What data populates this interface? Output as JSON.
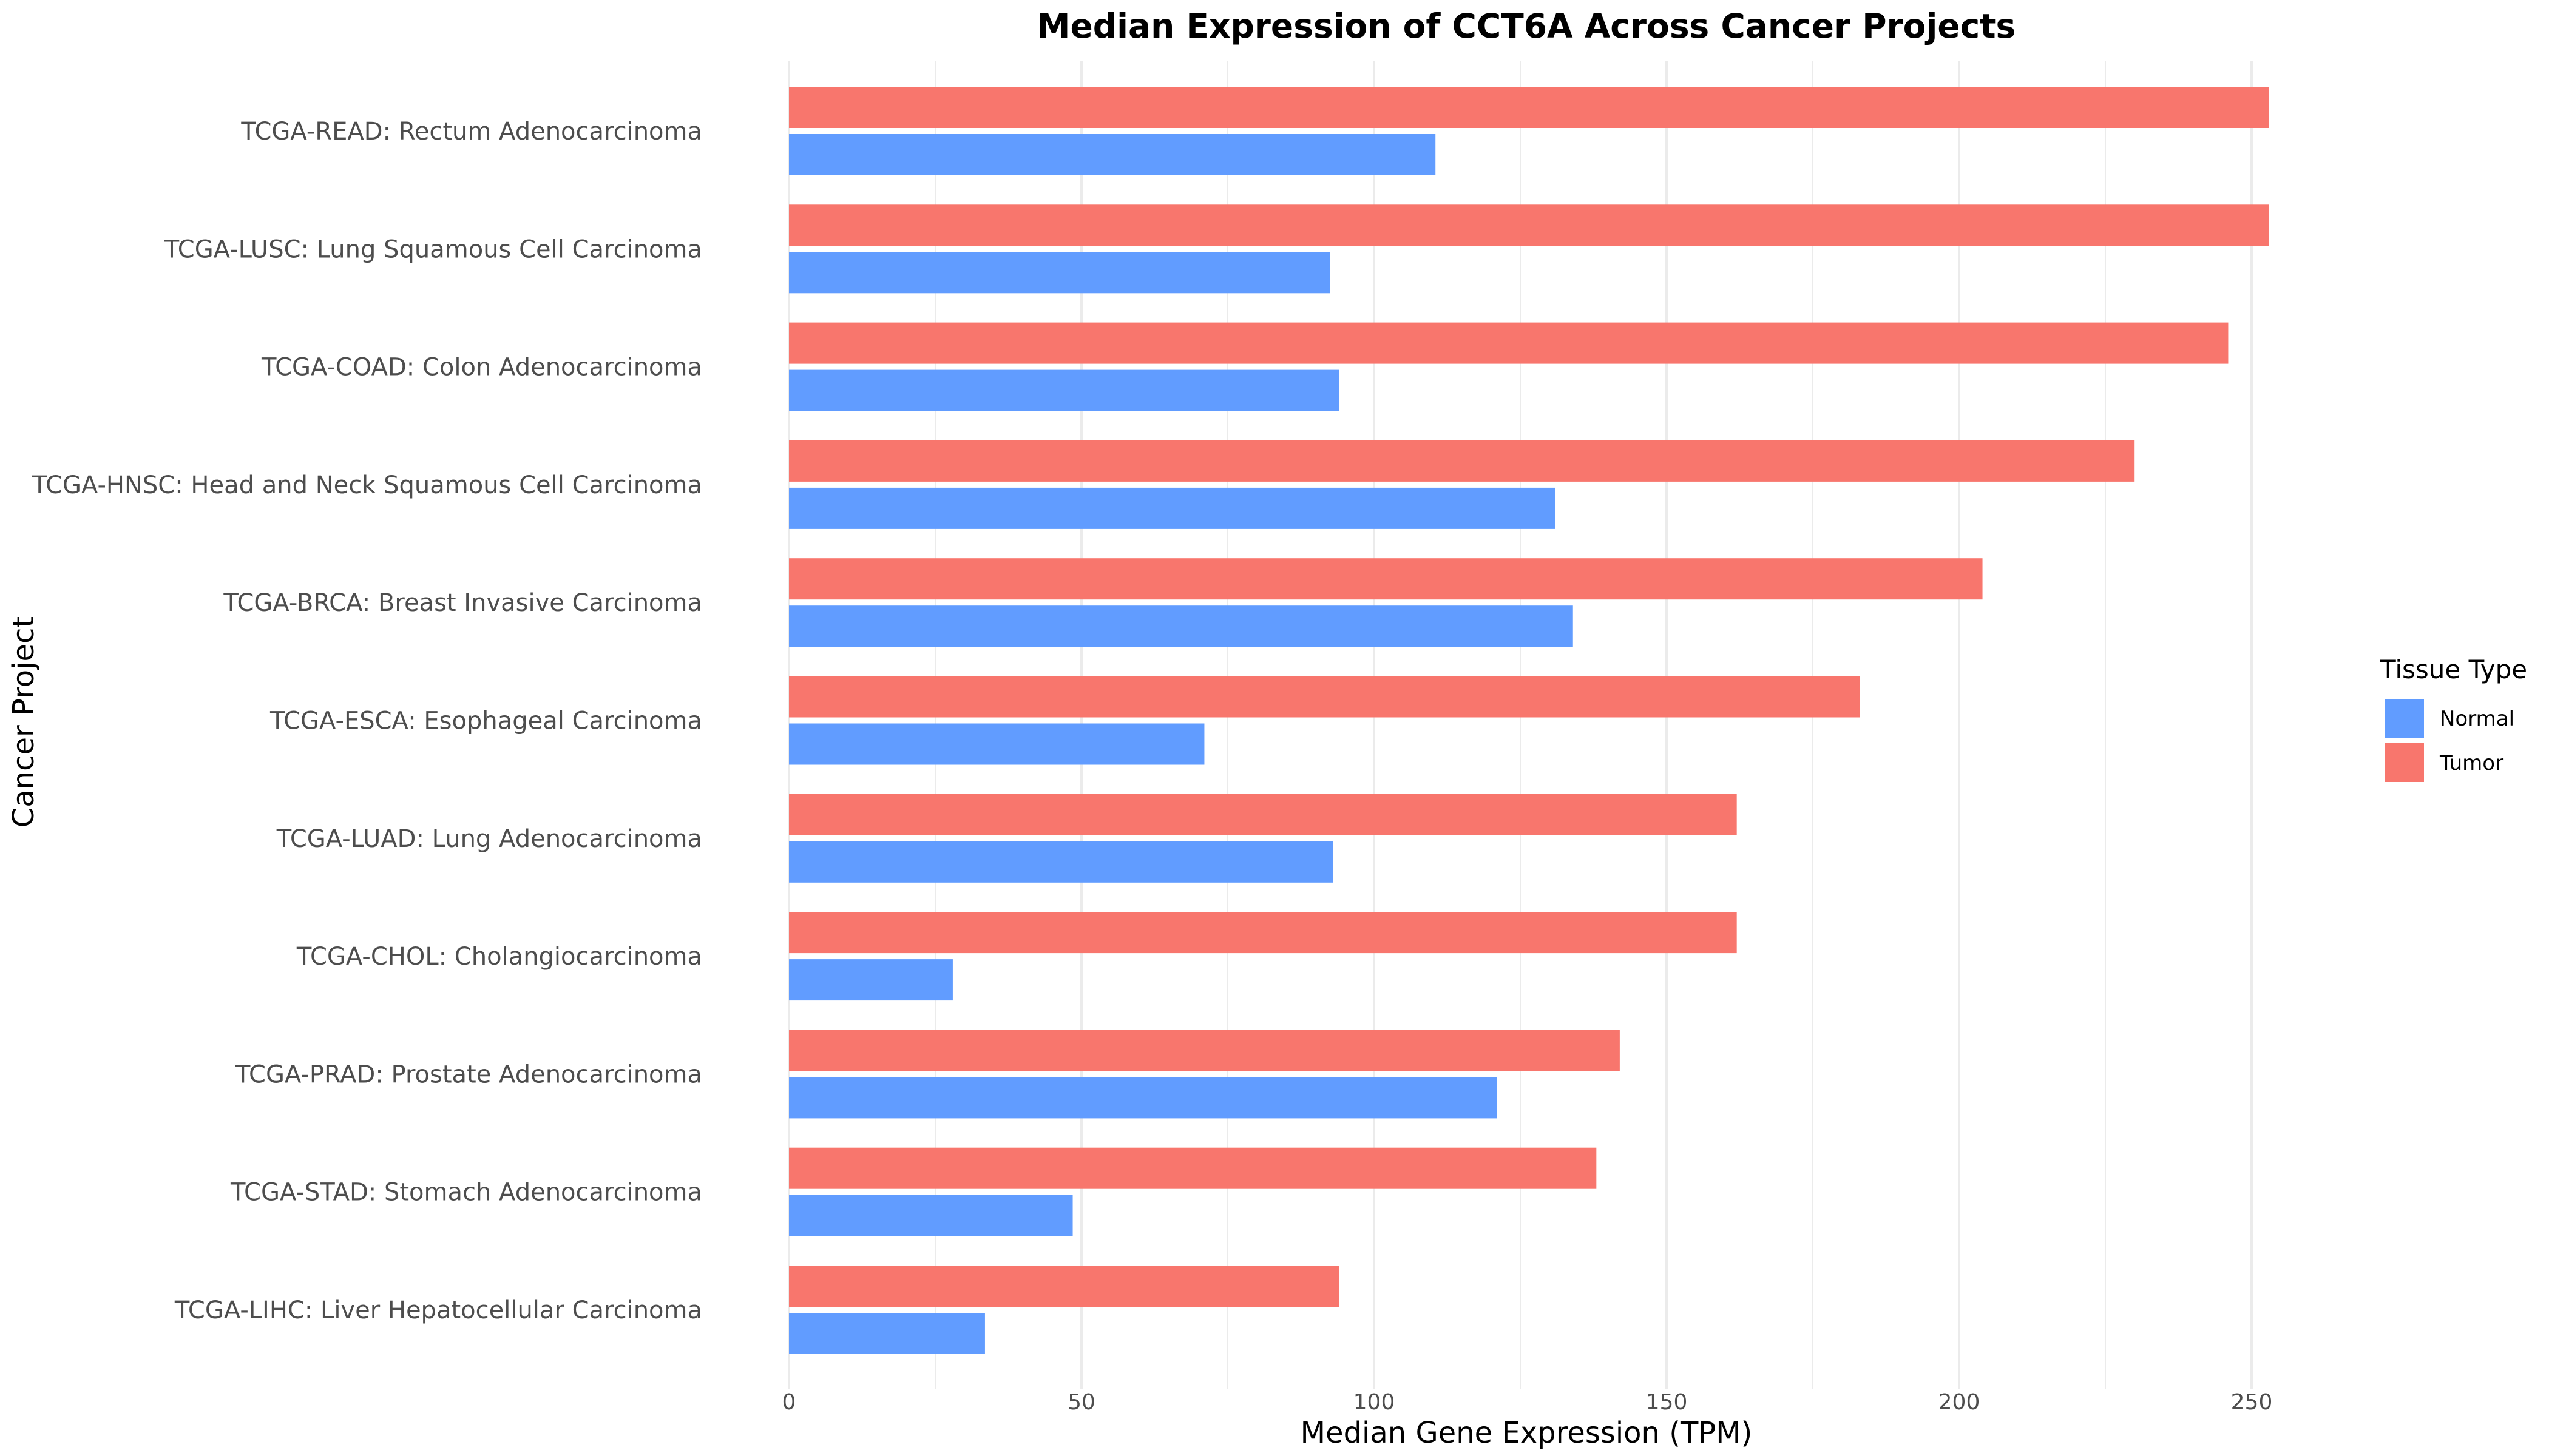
{
  "chart_data": {
    "type": "bar",
    "orientation": "horizontal",
    "title": "Median Expression of CCT6A Across Cancer Projects",
    "xlabel": "Median Gene Expression (TPM)",
    "ylabel": "Cancer Project",
    "xlim": [
      0,
      260
    ],
    "xticks": [
      0,
      50,
      100,
      150,
      200,
      250
    ],
    "grid": true,
    "legend": {
      "title": "Tissue Type",
      "placement": "right",
      "entries": [
        "Normal",
        "Tumor"
      ]
    },
    "categories": [
      "TCGA-READ: Rectum Adenocarcinoma",
      "TCGA-LUSC: Lung Squamous Cell Carcinoma",
      "TCGA-COAD: Colon Adenocarcinoma",
      "TCGA-HNSC: Head and Neck Squamous Cell Carcinoma",
      "TCGA-BRCA: Breast Invasive Carcinoma",
      "TCGA-ESCA: Esophageal Carcinoma",
      "TCGA-LUAD: Lung Adenocarcinoma",
      "TCGA-CHOL: Cholangiocarcinoma",
      "TCGA-PRAD: Prostate Adenocarcinoma",
      "TCGA-STAD: Stomach Adenocarcinoma",
      "TCGA-LIHC: Liver Hepatocellular Carcinoma"
    ],
    "series": [
      {
        "name": "Tumor",
        "color": "#F8766D",
        "values": [
          253,
          253,
          246,
          230,
          204,
          183,
          162,
          162,
          142,
          138,
          94
        ]
      },
      {
        "name": "Normal",
        "color": "#619CFF",
        "values": [
          110.5,
          92.5,
          94,
          131,
          134,
          71,
          93,
          28,
          121,
          48.5,
          33.5
        ]
      }
    ]
  }
}
